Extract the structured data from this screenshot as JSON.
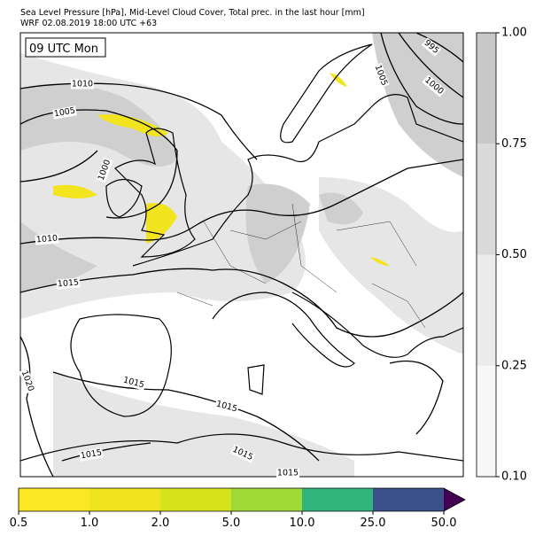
{
  "title": "Sea Level Pressure [hPa], Mid-Level Cloud Cover, Total prec. in the last hour [mm]",
  "subtitle": "WRF 02.08.2019 18:00 UTC +63",
  "time_label": "09 UTC Mon",
  "isobars": {
    "labels": [
      "1010",
      "1005",
      "1000",
      "995",
      "1000",
      "1005",
      "1010",
      "1015",
      "1020",
      "1015",
      "1015",
      "1015",
      "1015",
      "1015"
    ]
  },
  "colorbars": [
    {
      "name": "cloud",
      "orientation": "vertical",
      "ticks": [
        {
          "value": 0.1,
          "label": "0.10"
        },
        {
          "value": 0.25,
          "label": "0.25"
        },
        {
          "value": 0.5,
          "label": "0.50"
        },
        {
          "value": 0.75,
          "label": "0.75"
        },
        {
          "value": 1,
          "label": "1.00"
        }
      ],
      "colors": [
        "#f7f7f7",
        "#ebebeb",
        "#dadada",
        "#c8c8c8"
      ]
    },
    {
      "name": "precipitation",
      "orientation": "horizontal",
      "ticks": [
        {
          "value": 0.5,
          "label": "0.5"
        },
        {
          "value": 1,
          "label": "1.0"
        },
        {
          "value": 2,
          "label": "2.0"
        },
        {
          "value": 5,
          "label": "5.0"
        },
        {
          "value": 10,
          "label": "10.0"
        },
        {
          "value": 25,
          "label": "25.0"
        },
        {
          "value": 50,
          "label": "50.0"
        }
      ],
      "colors": [
        "#fde725",
        "#f0e41f",
        "#d6e21b",
        "#a0da39",
        "#31b57b",
        "#3b518b"
      ],
      "extend_color": "#440154"
    }
  ]
}
